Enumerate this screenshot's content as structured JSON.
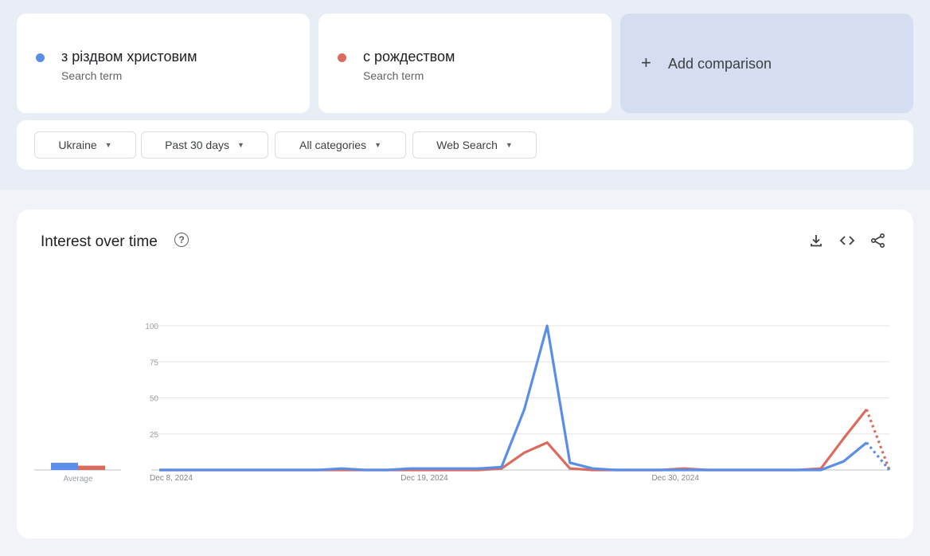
{
  "terms": [
    {
      "name": "з різдвом христовим",
      "sub": "Search term",
      "color": "#5b8ee8"
    },
    {
      "name": "с рождеством",
      "sub": "Search term",
      "color": "#db6b5f"
    }
  ],
  "add_comparison": {
    "plus": "+",
    "label": "Add comparison"
  },
  "filters": [
    {
      "label": "Ukraine",
      "caret": "▼"
    },
    {
      "label": "Past 30 days",
      "caret": "▼"
    },
    {
      "label": "All categories",
      "caret": "▼"
    },
    {
      "label": "Web Search",
      "caret": "▼"
    }
  ],
  "card": {
    "title": "Interest over time",
    "help": "?"
  },
  "actions": [
    "download-icon",
    "embed-code-icon",
    "share-icon"
  ],
  "chart_data": {
    "type": "line",
    "average_label": "Average",
    "averages": [
      5,
      3
    ],
    "yticks": [
      100,
      75,
      50,
      25
    ],
    "ylim": [
      0,
      100
    ],
    "x_labels": [
      {
        "label": "Dec 8, 2024",
        "index": 0
      },
      {
        "label": "Dec 19, 2024",
        "index": 11
      },
      {
        "label": "Dec 30, 2024",
        "index": 22
      }
    ],
    "series": [
      {
        "name": "з різдвом христовим",
        "color": "#5b8ee8",
        "values": [
          0,
          0,
          0,
          0,
          0,
          0,
          0,
          0,
          1,
          0,
          0,
          1,
          1,
          1,
          1,
          2,
          42,
          100,
          5,
          1,
          0,
          0,
          0,
          0,
          0,
          0,
          0,
          0,
          0,
          0,
          6,
          19,
          0
        ],
        "partial_from": 31
      },
      {
        "name": "с рождеством",
        "color": "#db6b5f",
        "values": [
          0,
          0,
          0,
          0,
          0,
          0,
          0,
          0,
          0,
          0,
          0,
          0,
          0,
          0,
          0,
          1,
          12,
          19,
          1,
          0,
          0,
          0,
          0,
          1,
          0,
          0,
          0,
          0,
          0,
          1,
          22,
          42,
          0
        ],
        "partial_from": 31
      }
    ]
  }
}
